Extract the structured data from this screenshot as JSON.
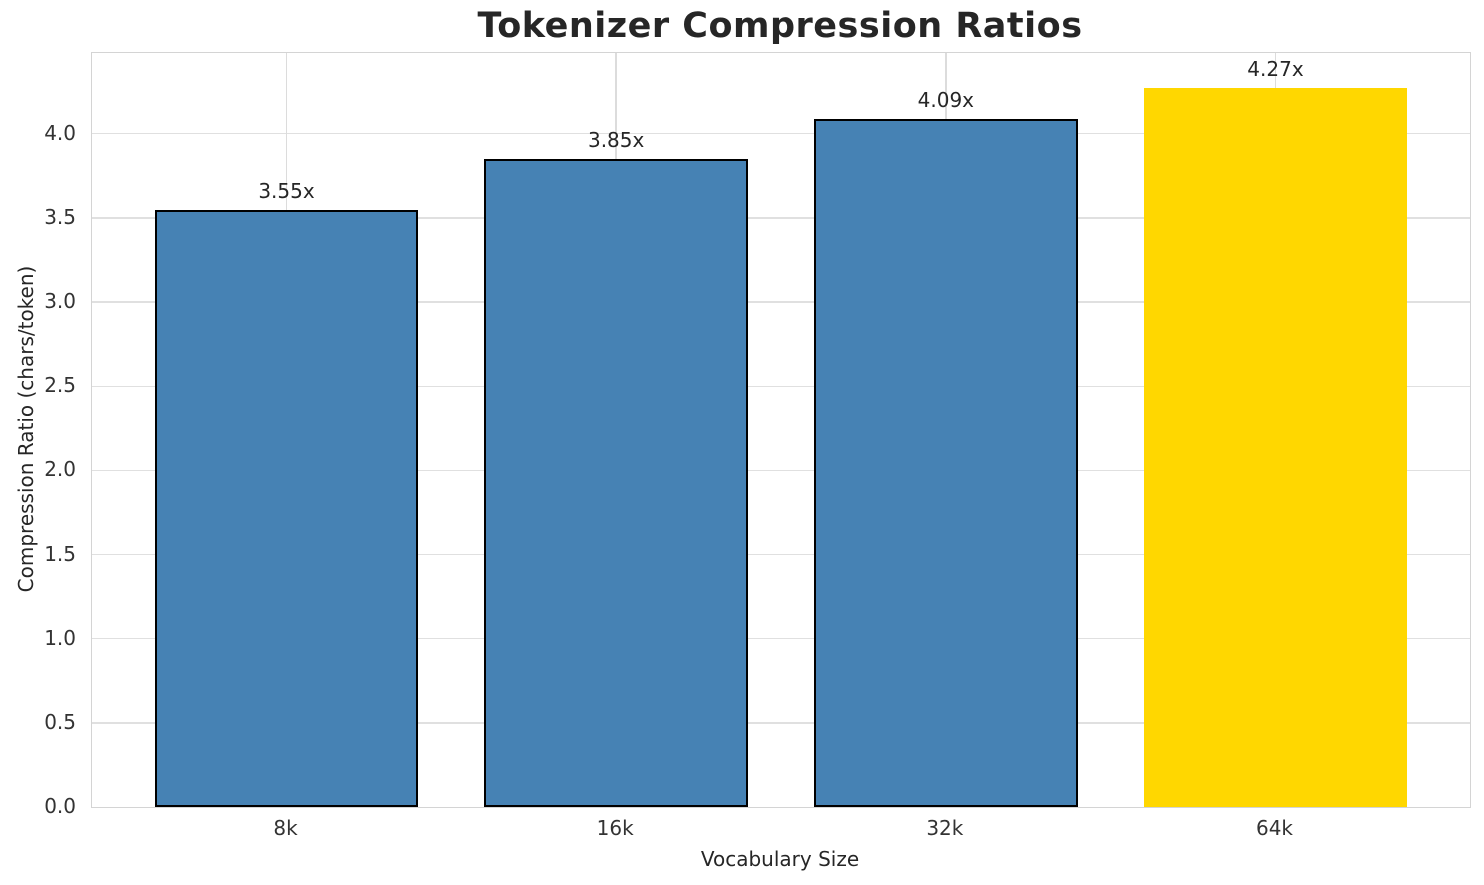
{
  "figure": {
    "background": "#ffffff"
  },
  "chart_data": {
    "type": "bar",
    "title": "Tokenizer Compression Ratios",
    "xlabel": "Vocabulary Size",
    "ylabel": "Compression Ratio (chars/token)",
    "categories": [
      "8k",
      "16k",
      "32k",
      "64k"
    ],
    "values": [
      3.55,
      3.85,
      4.09,
      4.27
    ],
    "bar_labels": [
      "3.55x",
      "3.85x",
      "4.09x",
      "4.27x"
    ],
    "bar_colors": [
      "#4682b4",
      "#4682b4",
      "#4682b4",
      "#ffd700"
    ],
    "bar_edge_colors": [
      "#000000",
      "#000000",
      "#000000",
      "transparent"
    ],
    "bar_edge_width": 2,
    "bar_width": 0.8,
    "xlim": [
      -0.59,
      3.59
    ],
    "ylim": [
      0,
      4.48
    ],
    "yticks": [
      0.0,
      0.5,
      1.0,
      1.5,
      2.0,
      2.5,
      3.0,
      3.5,
      4.0
    ],
    "grid": "on",
    "legend": "none",
    "grid_color": "#e0e0e0",
    "spine_color": "#d4d4d4",
    "text_color": "#262626"
  }
}
